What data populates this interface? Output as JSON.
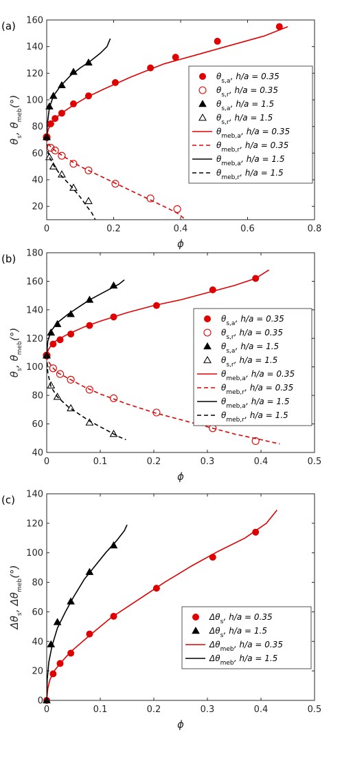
{
  "chart_data": [
    {
      "panel": "(a)",
      "type": "line",
      "xlabel": "ϕ",
      "ylabel": "θs, θmeb(°)",
      "xlim": [
        0,
        0.8
      ],
      "ylim": [
        10,
        160
      ],
      "xticks": [
        "0",
        "0.2",
        "0.4",
        "0.6",
        "0.8"
      ],
      "yticks": [
        "20",
        "40",
        "60",
        "80",
        "100",
        "120",
        "140",
        "160"
      ],
      "legend_position": "right",
      "series": [
        {
          "name": "θs,a, h/a = 0.35",
          "kind": "marker",
          "marker": "filled-circle",
          "color": "#e00000",
          "x": [
            0.0,
            0.012,
            0.025,
            0.045,
            0.08,
            0.125,
            0.205,
            0.31,
            0.385,
            0.51,
            0.695
          ],
          "y": [
            72,
            82,
            86,
            90,
            97,
            103,
            113,
            124,
            132,
            144,
            155
          ]
        },
        {
          "name": "θs,r, h/a = 0.35",
          "kind": "marker",
          "marker": "open-circle",
          "color": "#e00000",
          "x": [
            0.0,
            0.012,
            0.025,
            0.045,
            0.08,
            0.125,
            0.205,
            0.31,
            0.39
          ],
          "y": [
            72,
            64,
            62,
            58,
            52,
            47,
            37,
            26,
            18
          ]
        },
        {
          "name": "θs,a, h/a = 1.5",
          "kind": "marker",
          "marker": "filled-triangle",
          "color": "#000000",
          "x": [
            0.0,
            0.008,
            0.02,
            0.045,
            0.08,
            0.125
          ],
          "y": [
            72,
            95,
            103,
            111,
            121,
            128
          ]
        },
        {
          "name": "θs,r, h/a = 1.5",
          "kind": "marker",
          "marker": "open-triangle",
          "color": "#000000",
          "x": [
            0.0,
            0.008,
            0.02,
            0.045,
            0.08,
            0.125
          ],
          "y": [
            72,
            57,
            50,
            44,
            34,
            24
          ]
        },
        {
          "name": "θmeb,a, h/a = 0.35",
          "kind": "line",
          "dash": "solid",
          "color": "#e00000",
          "x": [
            0.0,
            0.005,
            0.015,
            0.03,
            0.05,
            0.08,
            0.12,
            0.17,
            0.25,
            0.35,
            0.45,
            0.55,
            0.65,
            0.72
          ],
          "y": [
            72,
            78,
            83,
            87,
            91,
            96,
            102,
            108,
            117,
            127,
            134,
            141,
            148,
            155
          ]
        },
        {
          "name": "θmeb,r, h/a = 0.35",
          "kind": "line",
          "dash": "dashed",
          "color": "#e00000",
          "x": [
            0.0,
            0.005,
            0.015,
            0.03,
            0.06,
            0.1,
            0.15,
            0.2,
            0.25,
            0.3,
            0.35,
            0.39,
            0.415
          ],
          "y": [
            72,
            67,
            64,
            61,
            56,
            50,
            44,
            38,
            32,
            26,
            20,
            15,
            10
          ]
        },
        {
          "name": "θmeb,a, h/a = 1.5",
          "kind": "line",
          "dash": "solid",
          "color": "#000000",
          "x": [
            0.0,
            0.002,
            0.008,
            0.02,
            0.04,
            0.07,
            0.1,
            0.13,
            0.16,
            0.18,
            0.19
          ],
          "y": [
            72,
            82,
            94,
            103,
            110,
            118,
            124,
            129,
            135,
            140,
            146
          ]
        },
        {
          "name": "θmeb,r, h/a = 1.5",
          "kind": "line",
          "dash": "dashed",
          "color": "#000000",
          "x": [
            0.0,
            0.002,
            0.008,
            0.02,
            0.04,
            0.07,
            0.1,
            0.12,
            0.135,
            0.145
          ],
          "y": [
            72,
            63,
            57,
            51,
            44,
            36,
            27,
            20,
            15,
            10
          ]
        }
      ]
    },
    {
      "panel": "(b)",
      "type": "line",
      "xlabel": "ϕ",
      "ylabel": "θs, θmeb(°)",
      "xlim": [
        0,
        0.5
      ],
      "ylim": [
        40,
        180
      ],
      "xticks": [
        "0",
        "0.1",
        "0.2",
        "0.3",
        "0.4",
        "0.5"
      ],
      "yticks": [
        "40",
        "60",
        "80",
        "100",
        "120",
        "140",
        "160",
        "180"
      ],
      "legend_position": "right",
      "series": [
        {
          "name": "θs,a, h/a = 0.35",
          "kind": "marker",
          "marker": "filled-circle",
          "color": "#e00000",
          "x": [
            0.0,
            0.012,
            0.025,
            0.045,
            0.08,
            0.125,
            0.205,
            0.31,
            0.39
          ],
          "y": [
            108,
            116,
            119,
            123,
            129,
            135,
            143,
            154,
            162
          ]
        },
        {
          "name": "θs,r, h/a = 0.35",
          "kind": "marker",
          "marker": "open-circle",
          "color": "#e00000",
          "x": [
            0.0,
            0.012,
            0.025,
            0.045,
            0.08,
            0.125,
            0.205,
            0.31,
            0.39
          ],
          "y": [
            108,
            99,
            95,
            91,
            84,
            78,
            68,
            57,
            48
          ]
        },
        {
          "name": "θs,a, h/a = 1.5",
          "kind": "marker",
          "marker": "filled-triangle",
          "color": "#000000",
          "x": [
            0.0,
            0.008,
            0.02,
            0.045,
            0.08,
            0.125
          ],
          "y": [
            108,
            124,
            130,
            137,
            147,
            157
          ]
        },
        {
          "name": "θs,r, h/a = 1.5",
          "kind": "marker",
          "marker": "open-triangle",
          "color": "#000000",
          "x": [
            0.0,
            0.008,
            0.02,
            0.045,
            0.08,
            0.125
          ],
          "y": [
            108,
            87,
            79,
            71,
            61,
            53
          ]
        },
        {
          "name": "θmeb,a, h/a = 0.35",
          "kind": "line",
          "dash": "solid",
          "color": "#e00000",
          "x": [
            0.0,
            0.003,
            0.01,
            0.02,
            0.04,
            0.07,
            0.1,
            0.15,
            0.2,
            0.25,
            0.3,
            0.35,
            0.39,
            0.415
          ],
          "y": [
            108,
            112,
            116,
            119,
            123,
            128,
            132,
            138,
            143,
            147,
            152,
            157,
            162,
            168
          ]
        },
        {
          "name": "θmeb,r, h/a = 0.35",
          "kind": "line",
          "dash": "dashed",
          "color": "#e00000",
          "x": [
            0.0,
            0.003,
            0.01,
            0.02,
            0.04,
            0.07,
            0.1,
            0.15,
            0.2,
            0.25,
            0.3,
            0.35,
            0.4,
            0.435
          ],
          "y": [
            108,
            104,
            100,
            96,
            92,
            86,
            81,
            74,
            68,
            63,
            58,
            53,
            49,
            46
          ]
        },
        {
          "name": "θmeb,a, h/a = 1.5",
          "kind": "line",
          "dash": "solid",
          "color": "#000000",
          "x": [
            0.0,
            0.002,
            0.008,
            0.02,
            0.04,
            0.06,
            0.08,
            0.1,
            0.12,
            0.135,
            0.145
          ],
          "y": [
            108,
            118,
            125,
            131,
            137,
            142,
            147,
            151,
            155,
            158,
            161
          ]
        },
        {
          "name": "θmeb,r, h/a = 1.5",
          "kind": "line",
          "dash": "dashed",
          "color": "#000000",
          "x": [
            0.0,
            0.002,
            0.008,
            0.02,
            0.04,
            0.06,
            0.08,
            0.1,
            0.12,
            0.135,
            0.148
          ],
          "y": [
            108,
            96,
            86,
            79,
            72,
            67,
            62,
            58,
            54,
            51,
            49
          ]
        }
      ]
    },
    {
      "panel": "(c)",
      "type": "line",
      "xlabel": "ϕ",
      "ylabel": "Δθs, Δθmeb(°)",
      "xlim": [
        0,
        0.5
      ],
      "ylim": [
        0,
        140
      ],
      "xticks": [
        "0",
        "0.1",
        "0.2",
        "0.3",
        "0.4",
        "0.5"
      ],
      "yticks": [
        "0",
        "20",
        "40",
        "60",
        "80",
        "100",
        "120",
        "140"
      ],
      "legend_position": "right",
      "series": [
        {
          "name": "Δθs, h/a = 0.35",
          "kind": "marker",
          "marker": "filled-circle",
          "color": "#e00000",
          "x": [
            0.0,
            0.012,
            0.025,
            0.045,
            0.08,
            0.125,
            0.205,
            0.31,
            0.39
          ],
          "y": [
            0,
            18,
            25,
            32,
            45,
            57,
            76,
            97,
            114
          ]
        },
        {
          "name": "Δθs, h/a = 1.5",
          "kind": "marker",
          "marker": "filled-triangle",
          "color": "#000000",
          "x": [
            0.0,
            0.008,
            0.02,
            0.045,
            0.08,
            0.125
          ],
          "y": [
            0,
            38,
            53,
            67,
            87,
            105
          ]
        },
        {
          "name": "Δθmeb, h/a = 0.35",
          "kind": "line",
          "dash": "solid",
          "color": "#e00000",
          "x": [
            0.0,
            0.002,
            0.006,
            0.012,
            0.025,
            0.045,
            0.08,
            0.12,
            0.17,
            0.22,
            0.27,
            0.32,
            0.37,
            0.41,
            0.43
          ],
          "y": [
            0,
            8,
            14,
            19,
            25,
            33,
            44,
            56,
            68,
            80,
            91,
            101,
            110,
            120,
            129
          ]
        },
        {
          "name": "Δθmeb, h/a = 1.5",
          "kind": "line",
          "dash": "solid",
          "color": "#000000",
          "x": [
            0.0,
            0.001,
            0.004,
            0.01,
            0.02,
            0.035,
            0.05,
            0.07,
            0.09,
            0.11,
            0.13,
            0.145,
            0.15
          ],
          "y": [
            0,
            14,
            26,
            37,
            49,
            60,
            70,
            82,
            91,
            100,
            108,
            115,
            119
          ]
        }
      ]
    }
  ]
}
